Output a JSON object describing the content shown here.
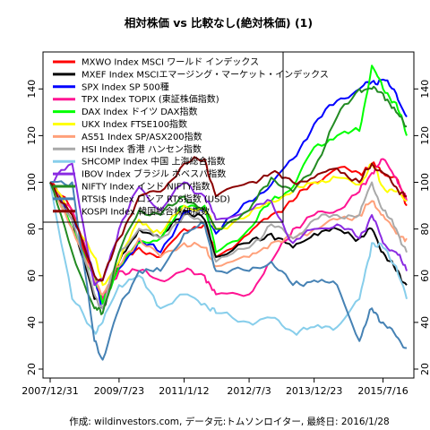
{
  "chart_data": {
    "type": "line",
    "title": "相対株価 vs 比較なし(絶対株価) (1)",
    "source": "作成: wildinvestors.com, データ元:トムソンロイター, 最終日: 2016/1/28",
    "x_tick_labels": [
      "2007/12/31",
      "2009/7/23",
      "2011/1/12",
      "2012/7/3",
      "2013/12/23",
      "2015/7/16"
    ],
    "x_tick_dates": [
      "2007-12-31",
      "2009-07-23",
      "2011-01-12",
      "2012-07-03",
      "2013-12-23",
      "2015-07-16"
    ],
    "xlim": [
      "2007-12-31",
      "2016-01-28"
    ],
    "ylim": [
      20,
      152
    ],
    "y_ticks": [
      20,
      40,
      60,
      80,
      100,
      120,
      140
    ],
    "legend_position": "top-left",
    "grid": false,
    "x": [
      "2007-12-31",
      "2008-06-30",
      "2008-12-31",
      "2009-03-09",
      "2009-07-23",
      "2010-01-04",
      "2010-07-01",
      "2011-01-12",
      "2011-07-01",
      "2011-10-03",
      "2012-07-03",
      "2013-01-02",
      "2013-07-01",
      "2013-12-23",
      "2014-07-01",
      "2015-01-02",
      "2015-04-15",
      "2015-07-16",
      "2015-11-02",
      "2016-01-28"
    ],
    "series": [
      {
        "name": "MXWO Index MSCI ワールド インデックス",
        "color": "#ff0000",
        "values": [
          100,
          88,
          58,
          50,
          64,
          72,
          68,
          80,
          82,
          68,
          78,
          86,
          92,
          100,
          106,
          104,
          108,
          104,
          102,
          90
        ]
      },
      {
        "name": "MXEF Index MSCIエマージング・マーケット・インデックス",
        "color": "#000000",
        "values": [
          100,
          84,
          50,
          46,
          66,
          80,
          76,
          88,
          84,
          68,
          74,
          78,
          72,
          78,
          80,
          76,
          80,
          70,
          62,
          56
        ]
      },
      {
        "name": "SPX Index SP 500種",
        "color": "#0000ff",
        "values": [
          100,
          86,
          60,
          46,
          63,
          75,
          70,
          87,
          88,
          78,
          92,
          99,
          110,
          125,
          135,
          140,
          143,
          144,
          138,
          128
        ]
      },
      {
        "name": "TPX Index TOPIX (東証株価指数)",
        "color": "#ff1493",
        "values": [
          100,
          88,
          60,
          50,
          62,
          62,
          58,
          62,
          60,
          52,
          52,
          66,
          80,
          86,
          88,
          96,
          104,
          110,
          102,
          92
        ]
      },
      {
        "name": "DAX Index ドイツ DAX指数",
        "color": "#00ff00",
        "values": [
          100,
          80,
          60,
          48,
          64,
          74,
          76,
          90,
          90,
          70,
          80,
          92,
          98,
          115,
          120,
          122,
          150,
          140,
          134,
          120
        ]
      },
      {
        "name": "UKX Index FTSE100指数",
        "color": "#ffff00",
        "values": [
          100,
          86,
          68,
          56,
          66,
          84,
          78,
          90,
          88,
          80,
          86,
          92,
          96,
          100,
          102,
          99,
          108,
          98,
          96,
          92
        ]
      },
      {
        "name": "AS51 Index SP/ASX200指数",
        "color": "#ffa07a",
        "values": [
          100,
          80,
          58,
          52,
          64,
          76,
          68,
          74,
          72,
          64,
          68,
          74,
          76,
          80,
          84,
          86,
          92,
          86,
          78,
          76
        ]
      },
      {
        "name": "HSI Index 香港 ハンセン指数",
        "color": "#a9a9a9",
        "values": [
          100,
          84,
          52,
          46,
          70,
          80,
          76,
          86,
          82,
          66,
          72,
          82,
          76,
          84,
          86,
          86,
          100,
          88,
          80,
          70
        ]
      },
      {
        "name": "SHCOMP Index 中国 上海総合指数",
        "color": "#87ceeb",
        "values": [
          100,
          50,
          36,
          40,
          56,
          60,
          46,
          52,
          48,
          44,
          40,
          42,
          36,
          38,
          38,
          50,
          74,
          72,
          64,
          50
        ]
      },
      {
        "name": "IBOV Index ブラジル ボベスパ指数",
        "color": "#8a2be2",
        "values": [
          100,
          108,
          56,
          58,
          80,
          98,
          88,
          100,
          94,
          84,
          88,
          92,
          74,
          80,
          82,
          76,
          86,
          74,
          70,
          62
        ]
      },
      {
        "name": "NIFTY Index インド NIFTY指数",
        "color": "#228b22",
        "values": [
          100,
          70,
          46,
          44,
          70,
          88,
          86,
          94,
          88,
          80,
          88,
          102,
          96,
          106,
          128,
          140,
          140,
          138,
          130,
          124
        ]
      },
      {
        "name": "RTSI$ Index ロシア RTS指数 (USD)",
        "color": "#4682b4",
        "values": [
          100,
          100,
          32,
          24,
          46,
          62,
          62,
          78,
          82,
          62,
          62,
          66,
          56,
          58,
          56,
          32,
          46,
          40,
          34,
          29
        ]
      },
      {
        "name": "KOSPI Index 韓国総合株価指数",
        "color": "#8b0000",
        "values": [
          100,
          86,
          60,
          58,
          76,
          94,
          96,
          108,
          110,
          94,
          100,
          104,
          100,
          102,
          106,
          100,
          108,
          104,
          98,
          94
        ]
      }
    ]
  }
}
